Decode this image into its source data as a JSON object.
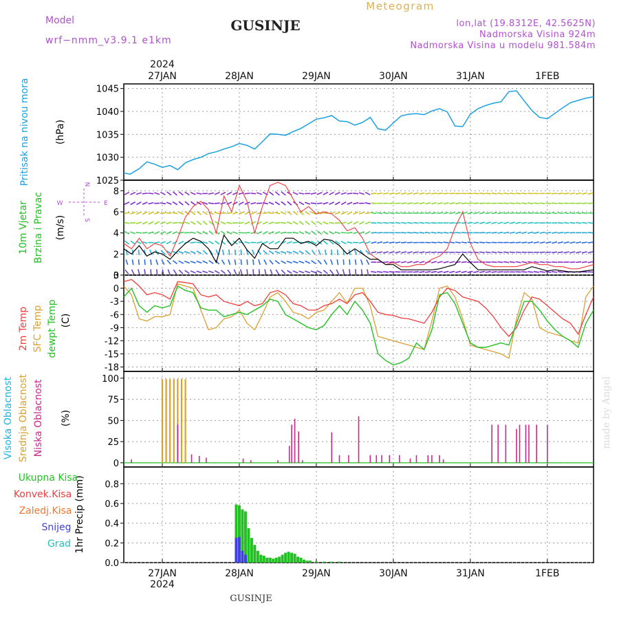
{
  "header": {
    "title": "GUSINJE",
    "subtitle": "Meteogram",
    "model_label": "Model",
    "model_name": "wrf−nmm_v3.9.1  e1km",
    "coords": "lon,lat (19.8312E, 42.5625N)",
    "altitude": "Nadmorska Visina 924m",
    "model_altitude": "Nadmorska Visina u modelu 981.584m",
    "footer": "GUSINJE",
    "watermark": "made by Angel"
  },
  "colors": {
    "pressure": "#1a9fe0",
    "temp2m": "#f03c3c",
    "sfc": "#daa030",
    "dewpt": "#22c022",
    "high": "#22b0e0",
    "mid": "#daa030",
    "low": "#c8288c",
    "total": "#22c022",
    "conv": "#f03c3c",
    "frz": "#f07830",
    "snow": "#4040e0",
    "grad": "#20c0c0",
    "label_purple": "#b050d0",
    "label_orange": "#e0b050",
    "wind_black": "#000000",
    "wind_red": "#f03c3c"
  },
  "chart_data": [
    {
      "type": "line",
      "panel": "pressure",
      "ylabel": [
        "Pritisak na nivou mora",
        "(hPa)"
      ],
      "ylim": [
        1025,
        1046
      ],
      "yticks": [
        1025,
        1030,
        1035,
        1040,
        1045
      ],
      "x_dates": [
        "27JAN",
        "28JAN",
        "29JAN",
        "30JAN",
        "31JAN",
        "1FEB"
      ],
      "x_year": "2024",
      "xlim": [
        -0.5,
        5.6
      ],
      "series": [
        {
          "x": [
            -0.5,
            -0.42,
            -0.3,
            -0.2,
            -0.1,
            0.0,
            0.1,
            0.2,
            0.3,
            0.4,
            0.5,
            0.6,
            0.7,
            0.8,
            0.9,
            1.0,
            1.1,
            1.2,
            1.3,
            1.4,
            1.5,
            1.6,
            1.7,
            1.8,
            1.9,
            2.0,
            2.1,
            2.2,
            2.3,
            2.4,
            2.5,
            2.6,
            2.7,
            2.8,
            2.9,
            3.0,
            3.1,
            3.2,
            3.3,
            3.4,
            3.5,
            3.6,
            3.7,
            3.8,
            3.9,
            4.0,
            4.1,
            4.2,
            4.3,
            4.4,
            4.5,
            4.6,
            4.7,
            4.8,
            4.9,
            5.0,
            5.1,
            5.2,
            5.3,
            5.4,
            5.5,
            5.6
          ],
          "values": [
            1026.6,
            1026.3,
            1027.5,
            1029.0,
            1028.5,
            1027.8,
            1028.2,
            1027.3,
            1028.8,
            1029.5,
            1030.0,
            1030.8,
            1031.2,
            1031.8,
            1032.3,
            1033.0,
            1032.6,
            1031.8,
            1033.4,
            1035.1,
            1035.0,
            1034.8,
            1035.6,
            1036.3,
            1037.3,
            1038.3,
            1038.6,
            1039.1,
            1037.9,
            1037.8,
            1037.0,
            1037.6,
            1038.7,
            1036.2,
            1035.9,
            1037.5,
            1039.0,
            1039.4,
            1039.5,
            1039.3,
            1040.1,
            1040.6,
            1039.9,
            1036.8,
            1036.7,
            1039.4,
            1040.6,
            1041.3,
            1041.8,
            1042.1,
            1044.3,
            1044.5,
            1042.3,
            1040.2,
            1038.7,
            1038.4,
            1039.6,
            1040.8,
            1041.9,
            1042.4,
            1042.9,
            1043.2
          ]
        }
      ]
    },
    {
      "type": "line",
      "panel": "wind",
      "ylabel": [
        "10m Vjetar",
        "Brzina i Pravac",
        "(m/s)"
      ],
      "compass": [
        "N",
        "E",
        "S",
        "W"
      ],
      "ylim": [
        0,
        9
      ],
      "yticks": [
        0,
        2,
        4,
        6,
        8
      ],
      "series": [
        {
          "name": "speed",
          "x": [
            -0.5,
            -0.4,
            -0.3,
            -0.2,
            -0.1,
            0.0,
            0.1,
            0.2,
            0.3,
            0.4,
            0.5,
            0.6,
            0.7,
            0.8,
            0.9,
            1.0,
            1.1,
            1.2,
            1.3,
            1.4,
            1.5,
            1.6,
            1.7,
            1.8,
            1.9,
            2.0,
            2.1,
            2.2,
            2.3,
            2.4,
            2.5,
            2.6,
            2.7,
            2.8,
            2.9,
            3.0,
            3.1,
            3.2,
            3.3,
            3.4,
            3.5,
            3.6,
            3.7,
            3.8,
            3.9,
            4.0,
            4.1,
            4.2,
            4.3,
            4.4,
            4.5,
            4.6,
            4.7,
            4.8,
            4.9,
            5.0,
            5.1,
            5.2,
            5.3,
            5.4,
            5.5,
            5.6
          ],
          "values": [
            2.5,
            2.0,
            2.8,
            1.8,
            2.2,
            2.0,
            1.5,
            2.3,
            3.0,
            3.5,
            3.2,
            2.5,
            1.2,
            3.8,
            2.8,
            3.5,
            2.4,
            1.6,
            3.0,
            2.5,
            2.5,
            3.5,
            3.5,
            3.0,
            3.2,
            2.8,
            3.4,
            3.3,
            2.8,
            2.0,
            2.5,
            2.0,
            1.5,
            1.5,
            1.0,
            1.0,
            0.5,
            0.5,
            0.5,
            0.5,
            0.5,
            0.6,
            0.8,
            1.0,
            2.0,
            1.2,
            0.5,
            0.5,
            0.5,
            0.5,
            0.5,
            0.5,
            0.5,
            0.8,
            0.6,
            0.4,
            0.5,
            0.4,
            0.3,
            0.3,
            0.4,
            0.5
          ]
        },
        {
          "name": "gust",
          "x": [
            -0.5,
            -0.4,
            -0.3,
            -0.2,
            -0.1,
            0.0,
            0.1,
            0.2,
            0.3,
            0.4,
            0.5,
            0.6,
            0.7,
            0.8,
            0.9,
            1.0,
            1.1,
            1.2,
            1.3,
            1.4,
            1.5,
            1.6,
            1.7,
            1.8,
            1.9,
            2.0,
            2.1,
            2.2,
            2.3,
            2.4,
            2.5,
            2.6,
            2.7,
            2.8,
            2.9,
            3.0,
            3.1,
            3.2,
            3.3,
            3.4,
            3.5,
            3.6,
            3.7,
            3.8,
            3.9,
            4.0,
            4.1,
            4.2,
            4.3,
            4.4,
            4.5,
            4.6,
            4.7,
            4.8,
            4.9,
            5.0,
            5.1,
            5.2,
            5.3,
            5.4,
            5.5,
            5.6
          ],
          "values": [
            3.0,
            2.5,
            3.5,
            2.5,
            3.0,
            2.8,
            1.8,
            3.5,
            5.5,
            6.5,
            7.0,
            6.2,
            4.0,
            7.5,
            6.0,
            8.5,
            7.0,
            4.0,
            6.5,
            8.5,
            8.8,
            8.5,
            7.2,
            6.0,
            6.5,
            5.8,
            6.0,
            5.8,
            5.2,
            4.2,
            4.5,
            3.5,
            2.0,
            1.5,
            1.0,
            1.2,
            0.8,
            0.8,
            1.0,
            1.0,
            1.5,
            1.8,
            2.5,
            4.5,
            6.0,
            3.0,
            1.5,
            1.0,
            0.8,
            0.8,
            0.8,
            0.8,
            1.0,
            1.2,
            1.0,
            1.0,
            0.8,
            0.8,
            0.6,
            0.6,
            0.8,
            1.0
          ]
        }
      ]
    },
    {
      "type": "line",
      "panel": "temperature",
      "ylabel": [
        "2m Temp",
        "SFC Temp",
        "dewpt Temp",
        "(C)"
      ],
      "ylim": [
        -19,
        3
      ],
      "yticks": [
        3,
        0,
        -3,
        -6,
        -9,
        -12,
        -15,
        -18
      ],
      "series": [
        {
          "name": "2m Temp",
          "x": [
            -0.5,
            -0.4,
            -0.3,
            -0.2,
            -0.1,
            0.0,
            0.1,
            0.2,
            0.3,
            0.4,
            0.5,
            0.6,
            0.7,
            0.8,
            0.9,
            1.0,
            1.1,
            1.2,
            1.3,
            1.4,
            1.5,
            1.6,
            1.7,
            1.8,
            1.9,
            2.0,
            2.1,
            2.2,
            2.3,
            2.4,
            2.5,
            2.6,
            2.7,
            2.8,
            2.9,
            3.0,
            3.1,
            3.2,
            3.3,
            3.4,
            3.5,
            3.6,
            3.7,
            3.8,
            3.9,
            4.0,
            4.1,
            4.2,
            4.3,
            4.4,
            4.5,
            4.6,
            4.7,
            4.8,
            4.9,
            5.0,
            5.1,
            5.2,
            5.3,
            5.4,
            5.5,
            5.6
          ],
          "values": [
            1.5,
            2.0,
            0.5,
            -1.5,
            -1.0,
            -1.5,
            -2.5,
            1.5,
            1.3,
            1.0,
            -1.5,
            -2.0,
            -1.5,
            -3.0,
            -3.5,
            -4.0,
            -3.0,
            -4.0,
            -3.5,
            -1.0,
            -0.5,
            -1.5,
            -3.5,
            -4.0,
            -5.0,
            -5.0,
            -4.0,
            -3.5,
            -2.5,
            -3.5,
            -1.5,
            -1.0,
            -3.0,
            -5.5,
            -6.0,
            -6.2,
            -6.8,
            -7.0,
            -7.5,
            -8.0,
            -5.5,
            -2.0,
            0.0,
            -0.5,
            -2.0,
            -2.5,
            -3.0,
            -4.5,
            -6.5,
            -9.0,
            -11.0,
            -9.0,
            -5.0,
            -2.0,
            -2.5,
            -4.0,
            -5.5,
            -7.0,
            -8.0,
            -10.5,
            -6.0,
            -2.0
          ]
        },
        {
          "name": "SFC Temp",
          "x": [
            -0.5,
            -0.4,
            -0.3,
            -0.2,
            -0.1,
            0.0,
            0.1,
            0.2,
            0.3,
            0.4,
            0.5,
            0.6,
            0.7,
            0.8,
            0.9,
            1.0,
            1.1,
            1.2,
            1.3,
            1.4,
            1.5,
            1.6,
            1.7,
            1.8,
            1.9,
            2.0,
            2.1,
            2.2,
            2.3,
            2.4,
            2.5,
            2.6,
            2.7,
            2.8,
            2.9,
            3.0,
            3.1,
            3.2,
            3.3,
            3.4,
            3.5,
            3.6,
            3.7,
            3.8,
            3.9,
            4.0,
            4.1,
            4.2,
            4.3,
            4.4,
            4.5,
            4.6,
            4.7,
            4.8,
            4.9,
            5.0,
            5.1,
            5.2,
            5.3,
            5.4,
            5.5,
            5.6
          ],
          "values": [
            0.5,
            -1.5,
            -7.0,
            -7.5,
            -6.5,
            -6.5,
            -6.0,
            1.0,
            0.5,
            0.0,
            -5.0,
            -9.5,
            -9.0,
            -7.0,
            -6.5,
            -5.0,
            -8.0,
            -9.5,
            -6.0,
            -2.0,
            -1.0,
            -3.0,
            -5.5,
            -6.0,
            -7.0,
            -5.5,
            -5.0,
            -3.0,
            -1.0,
            -3.5,
            0.0,
            0.0,
            -4.0,
            -11.0,
            -11.5,
            -12.0,
            -12.5,
            -13.0,
            -13.5,
            -14.0,
            -7.5,
            0.0,
            0.5,
            -2.0,
            -7.0,
            -13.0,
            -13.5,
            -14.0,
            -14.5,
            -15.0,
            -16.0,
            -7.0,
            -1.0,
            -2.5,
            -9.0,
            -10.0,
            -10.5,
            -11.0,
            -12.0,
            -12.5,
            -2.0,
            0.5
          ]
        },
        {
          "name": "dewpt Temp",
          "x": [
            -0.5,
            -0.4,
            -0.3,
            -0.2,
            -0.1,
            0.0,
            0.1,
            0.2,
            0.3,
            0.4,
            0.5,
            0.6,
            0.7,
            0.8,
            0.9,
            1.0,
            1.1,
            1.2,
            1.3,
            1.4,
            1.5,
            1.6,
            1.7,
            1.8,
            1.9,
            2.0,
            2.1,
            2.2,
            2.3,
            2.4,
            2.5,
            2.6,
            2.7,
            2.8,
            2.9,
            3.0,
            3.1,
            3.2,
            3.3,
            3.4,
            3.5,
            3.6,
            3.7,
            3.8,
            3.9,
            4.0,
            4.1,
            4.2,
            4.3,
            4.4,
            4.5,
            4.6,
            4.7,
            4.8,
            4.9,
            5.0,
            5.1,
            5.2,
            5.3,
            5.4,
            5.5,
            5.6
          ],
          "values": [
            -2.0,
            0.0,
            -4.0,
            -5.5,
            -4.0,
            -4.5,
            -4.0,
            0.5,
            -0.5,
            -1.0,
            -4.5,
            -5.0,
            -5.0,
            -6.5,
            -6.0,
            -5.5,
            -6.0,
            -5.0,
            -4.0,
            -2.5,
            -3.0,
            -6.0,
            -7.0,
            -8.0,
            -9.0,
            -9.5,
            -8.5,
            -6.0,
            -4.0,
            -6.0,
            -3.0,
            -5.0,
            -8.0,
            -15.0,
            -16.5,
            -17.5,
            -17.0,
            -16.0,
            -12.5,
            -14.0,
            -9.5,
            -1.5,
            -1.0,
            -3.5,
            -8.0,
            -12.5,
            -13.5,
            -13.5,
            -13.0,
            -12.5,
            -13.0,
            -8.0,
            -3.0,
            -3.0,
            -5.0,
            -7.5,
            -9.5,
            -11.0,
            -12.0,
            -13.5,
            -8.0,
            -5.0
          ]
        }
      ]
    },
    {
      "type": "bar",
      "panel": "cloud",
      "ylabel": [
        "Visoka Oblacnost",
        "Srednja Oblacnost",
        "Niska Oblacnost",
        "(%)"
      ],
      "ylim": [
        -5,
        108
      ],
      "yticks": [
        0,
        25,
        50,
        75,
        100
      ],
      "series": [
        {
          "name": "Visoka Oblacnost",
          "x": [
            0.0,
            0.05,
            0.1,
            0.15,
            0.2,
            0.25,
            0.3
          ],
          "values": [
            2,
            2,
            2,
            2,
            2,
            2,
            2
          ]
        },
        {
          "name": "Srednja Oblacnost",
          "x": [
            0.0,
            0.05,
            0.1,
            0.15,
            0.2,
            0.25,
            0.3
          ],
          "values": [
            99,
            99,
            99,
            99,
            99,
            99,
            99
          ]
        },
        {
          "name": "Niska Oblacnost",
          "x": [
            -0.4,
            0.2,
            0.38,
            0.48,
            0.57,
            1.05,
            1.15,
            1.5,
            1.65,
            1.68,
            1.72,
            1.77,
            1.82,
            2.2,
            2.3,
            2.42,
            2.55,
            2.7,
            2.78,
            2.85,
            2.95,
            3.08,
            3.22,
            3.3,
            3.45,
            3.5,
            3.6,
            3.65,
            4.28,
            4.36,
            4.46,
            4.6,
            4.64,
            4.72,
            4.76,
            4.86,
            5.0
          ],
          "values": [
            4,
            45,
            10,
            8,
            6,
            5,
            3,
            3,
            20,
            45,
            52,
            37,
            3,
            36,
            9,
            9,
            55,
            9,
            9,
            9,
            9,
            9,
            5,
            9,
            9,
            9,
            9,
            4,
            45,
            45,
            45,
            40,
            45,
            45,
            45,
            45,
            45
          ]
        }
      ]
    },
    {
      "type": "bar",
      "panel": "precip",
      "ylabel": [
        "1hr Precip (mm)"
      ],
      "legend": [
        "Ukupna  Kisa",
        "Konvek.Kisa",
        "Zaledj.Kisa",
        "Snijeg",
        "Grad"
      ],
      "ylim": [
        0,
        0.97
      ],
      "yticks": [
        0.0,
        0.2,
        0.4,
        0.6,
        0.8
      ],
      "series": [
        {
          "name": "Ukupna  Kisa",
          "x": [
            0.96,
            1.0,
            1.04,
            1.08,
            1.12,
            1.16,
            1.2,
            1.24,
            1.28,
            1.32,
            1.36,
            1.4,
            1.44,
            1.48,
            1.52,
            1.56,
            1.6,
            1.64,
            1.68,
            1.72,
            1.76,
            1.8,
            1.84,
            1.88,
            1.92,
            2.0,
            2.1,
            2.2,
            2.3
          ],
          "values": [
            0.59,
            0.58,
            0.54,
            0.52,
            0.35,
            0.25,
            0.18,
            0.12,
            0.08,
            0.07,
            0.05,
            0.05,
            0.04,
            0.05,
            0.06,
            0.08,
            0.1,
            0.11,
            0.1,
            0.09,
            0.06,
            0.05,
            0.03,
            0.02,
            0.02,
            0.01,
            0.01,
            0.01,
            0.01
          ]
        },
        {
          "name": "Snijeg",
          "x": [
            0.96,
            1.0,
            1.04,
            1.08
          ],
          "values": [
            0.25,
            0.26,
            0.12,
            0.08
          ]
        }
      ]
    }
  ]
}
